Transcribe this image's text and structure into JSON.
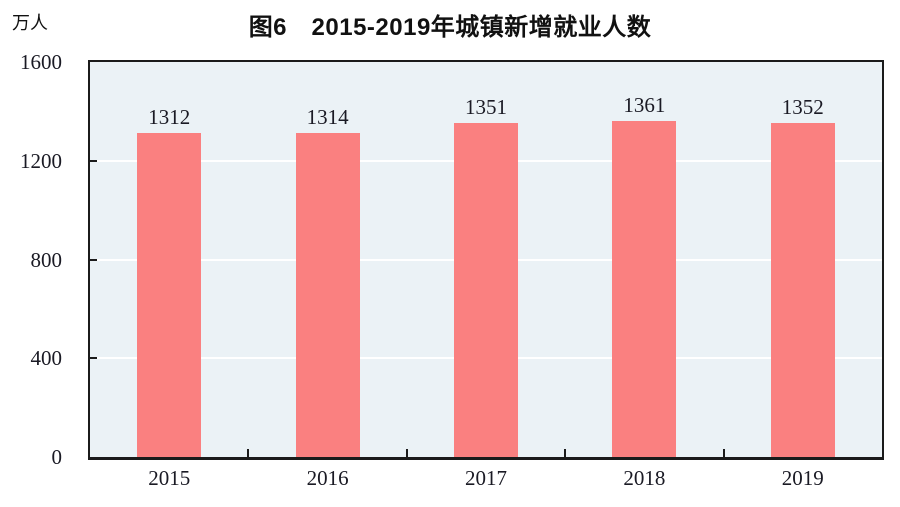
{
  "header": {
    "title": "图6　2015-2019年城镇新增就业人数",
    "unit_label": "万人"
  },
  "chart_data": {
    "type": "bar",
    "title": "图6　2015-2019年城镇新增就业人数",
    "categories": [
      "2015",
      "2016",
      "2017",
      "2018",
      "2019"
    ],
    "values": [
      1312,
      1314,
      1351,
      1361,
      1352
    ],
    "xlabel": "",
    "ylabel": "万人",
    "ylim": [
      0,
      1600
    ],
    "yticks": [
      0,
      400,
      800,
      1200,
      1600
    ],
    "grid": true,
    "legend_position": "none",
    "bar_color": "#FA8080",
    "plot_background": "#EBF2F6",
    "gridline_color": "#FFFFFF",
    "axis_color": "#1B1B1B",
    "label_color": "#1A1A24"
  }
}
